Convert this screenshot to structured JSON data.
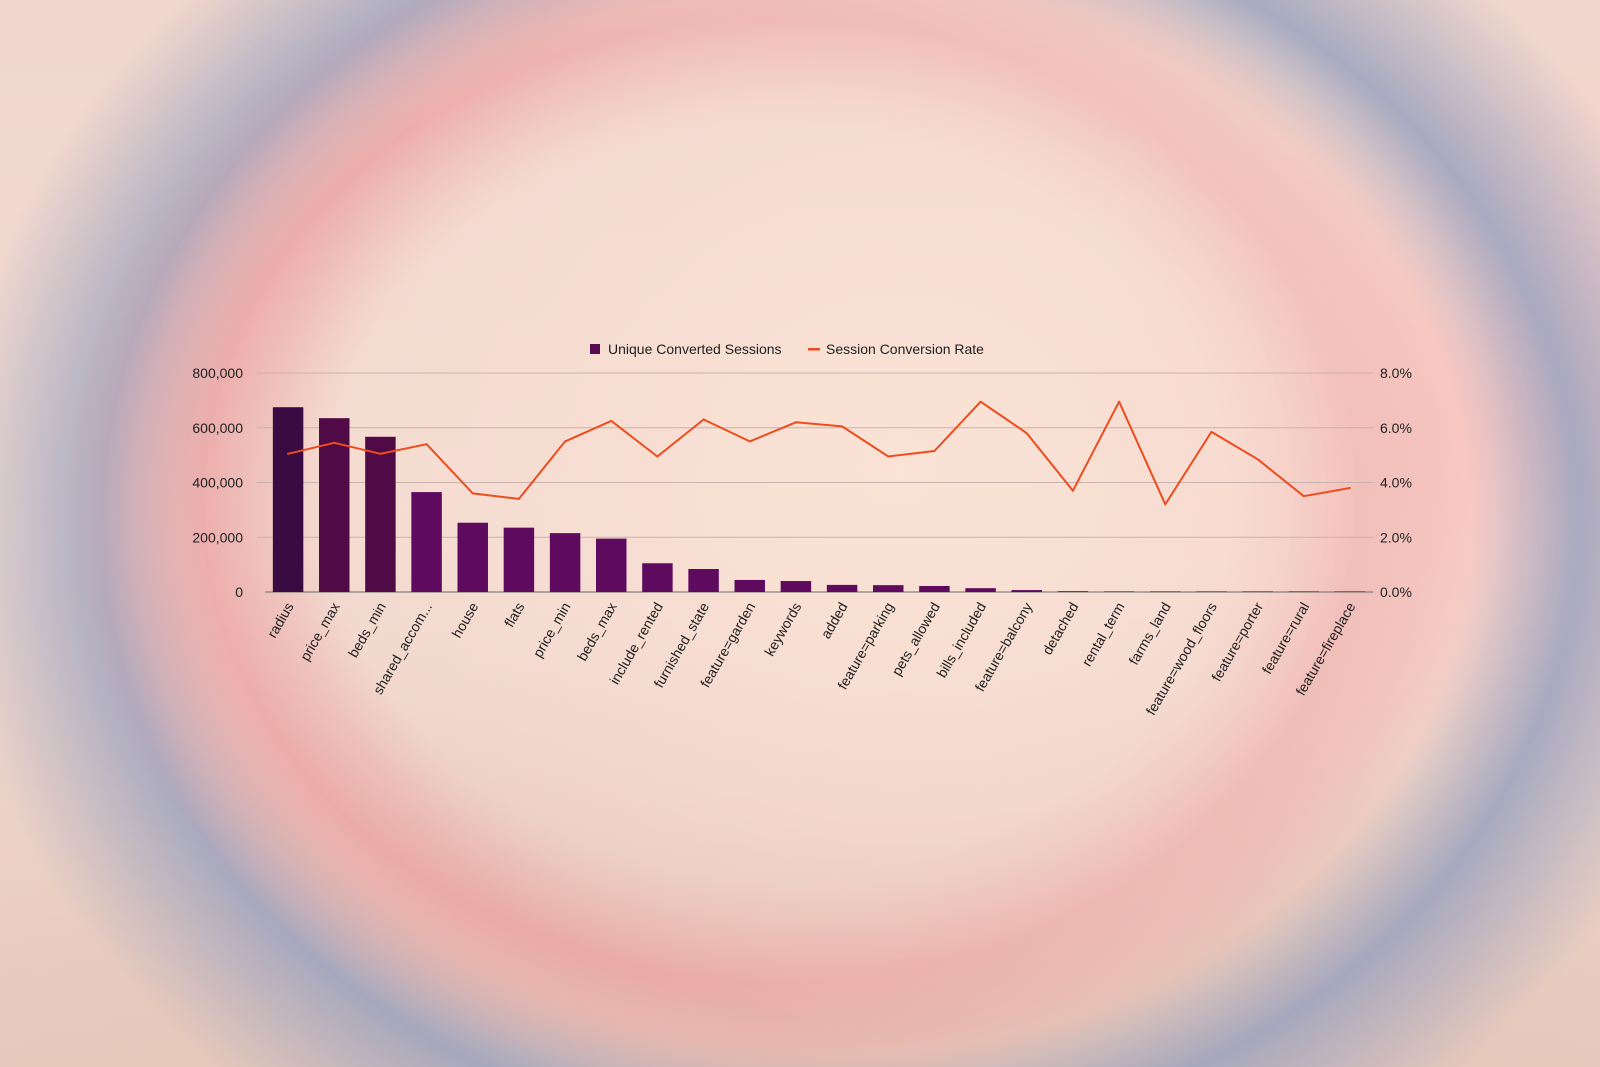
{
  "chart_data": {
    "type": "bar",
    "categories": [
      "radius",
      "price_max",
      "beds_min",
      "shared_accom...",
      "house",
      "flats",
      "price_min",
      "beds_max",
      "include_rented",
      "furnished_state",
      "feature=garden",
      "keywords",
      "added",
      "feature=parking",
      "pets_allowed",
      "bills_included",
      "feature=balcony",
      "detached",
      "rental_term",
      "farms_land",
      "feature=wood_floors",
      "feature=porter",
      "feature=rural",
      "feature=fireplace"
    ],
    "series": [
      {
        "name": "Unique Converted Sessions",
        "type": "bar",
        "axis": "left",
        "color": "#5a0a50",
        "values": [
          675000,
          635000,
          567000,
          365000,
          253000,
          235000,
          215000,
          195000,
          105000,
          84000,
          44000,
          40000,
          26000,
          25000,
          22000,
          14000,
          7000,
          3000,
          800,
          500,
          400,
          300,
          200,
          100
        ]
      },
      {
        "name": "Session Conversion Rate",
        "type": "line",
        "axis": "right",
        "color": "#ee4c1e",
        "values": [
          5.05,
          5.45,
          5.05,
          5.4,
          3.6,
          3.4,
          5.5,
          6.25,
          4.95,
          6.3,
          5.5,
          6.2,
          6.05,
          4.95,
          5.15,
          6.95,
          5.8,
          3.7,
          6.95,
          3.2,
          5.85,
          4.85,
          3.5,
          3.8
        ]
      }
    ],
    "ylim": [
      0,
      800000
    ],
    "y2lim": [
      0,
      8
    ],
    "yticks": [
      "0",
      "200,000",
      "400,000",
      "600,000",
      "800,000"
    ],
    "y2ticks": [
      "0.0%",
      "2.0%",
      "4.0%",
      "6.0%",
      "8.0%"
    ],
    "xlabel": "",
    "ylabel": "",
    "grid": true,
    "legend": "top"
  },
  "colors": {
    "bar_dark": "#3a0a42",
    "bar_mid": "#500a46",
    "bar_light": "#5e0a5e",
    "line": "#ee4c1e",
    "grid": "#c9b3ae",
    "baseline": "#6b6b6b"
  }
}
